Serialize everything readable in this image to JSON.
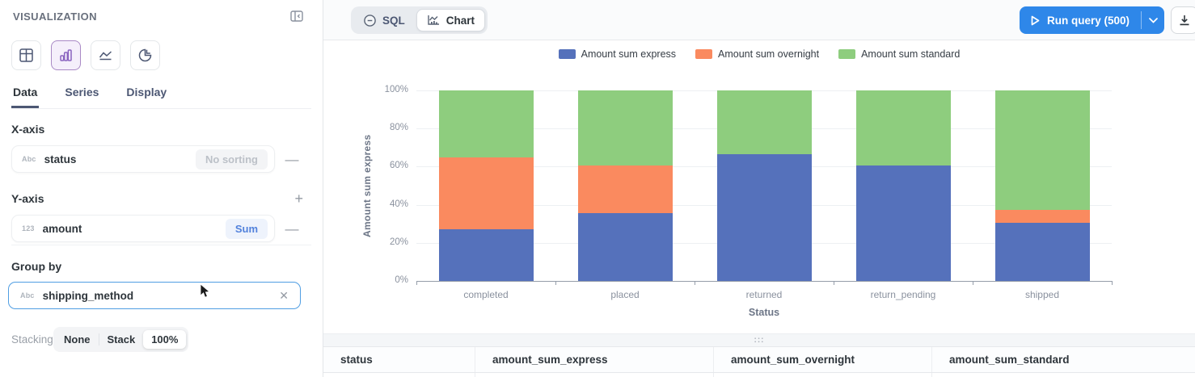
{
  "sidebar": {
    "title": "VISUALIZATION",
    "chart_types": [
      {
        "name": "table",
        "selected": false
      },
      {
        "name": "bar",
        "selected": true
      },
      {
        "name": "line",
        "selected": false
      },
      {
        "name": "pie",
        "selected": false
      }
    ],
    "tabs": [
      {
        "label": "Data",
        "active": true
      },
      {
        "label": "Series",
        "active": false
      },
      {
        "label": "Display",
        "active": false
      }
    ],
    "x_axis": {
      "heading": "X-axis",
      "field_type": "Abc",
      "field": "status",
      "sort_label": "No sorting",
      "remove_glyph": "—"
    },
    "y_axis": {
      "heading": "Y-axis",
      "add_glyph": "+",
      "field_type": "123",
      "field": "amount",
      "aggregation": "Sum",
      "remove_glyph": "—"
    },
    "group_by": {
      "heading": "Group by",
      "field_type": "Abc",
      "field": "shipping_method",
      "clear_glyph": "✕"
    },
    "stacking": {
      "label": "Stacking",
      "options": [
        {
          "label": "None",
          "selected": false
        },
        {
          "label": "Stack",
          "selected": false
        },
        {
          "label": "100%",
          "selected": true
        }
      ]
    }
  },
  "topbar": {
    "sql_tab": "SQL",
    "chart_tab": "Chart",
    "run_query_label": "Run query (500)"
  },
  "drag_handle_glyph": ":::",
  "chart_data": {
    "type": "bar",
    "stacking": "100%",
    "title": "",
    "xlabel": "Status",
    "ylabel": "Amount sum express",
    "categories": [
      "completed",
      "placed",
      "returned",
      "return_pending",
      "shipped"
    ],
    "series": [
      {
        "name": "Amount sum express",
        "color": "#5571BB",
        "values": [
          27,
          35.5,
          66.5,
          60.5,
          30.5
        ]
      },
      {
        "name": "Amount sum overnight",
        "color": "#FA8A5F",
        "values": [
          38,
          25,
          0,
          0,
          7
        ]
      },
      {
        "name": "Amount sum standard",
        "color": "#8ECD7E",
        "values": [
          35,
          39.5,
          33.5,
          39.5,
          62.5
        ]
      }
    ],
    "ylim": [
      0,
      100
    ],
    "y_ticks": [
      {
        "value": 0,
        "label": "0%"
      },
      {
        "value": 20,
        "label": "20%"
      },
      {
        "value": 40,
        "label": "40%"
      },
      {
        "value": 60,
        "label": "60%"
      },
      {
        "value": 80,
        "label": "80%"
      },
      {
        "value": 100,
        "label": "100%"
      }
    ],
    "grid": true,
    "legend_position": "top"
  },
  "table": {
    "headers": [
      "status",
      "amount_sum_express",
      "amount_sum_overnight",
      "amount_sum_standard"
    ]
  },
  "colors": {
    "accent_blue": "#509EE3",
    "run_button_blue": "#2E87E9",
    "selected_purple": "#A989C5"
  }
}
